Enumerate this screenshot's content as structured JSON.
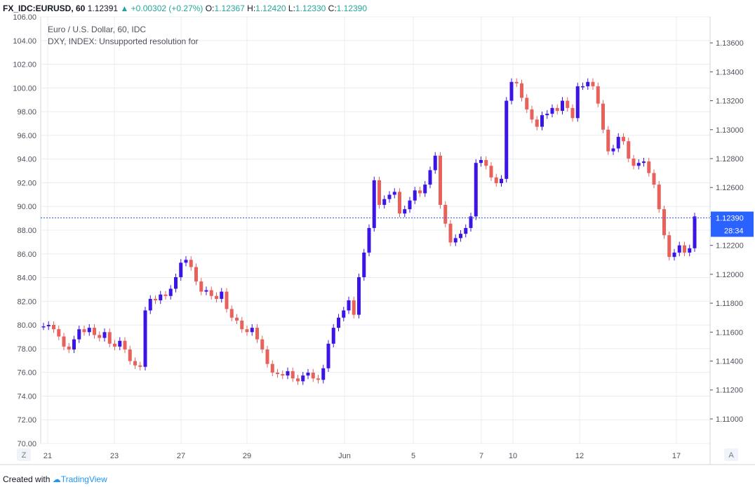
{
  "header": {
    "symbol": "FX_IDC:EURUSD, 60",
    "last": "1.12391",
    "arrow": "▲",
    "change": "+0.00302 (+0.27%)",
    "o_label": "O:",
    "o_value": "1.12367",
    "h_label": "H:",
    "h_value": "1.12420",
    "l_label": "L:",
    "l_value": "1.12330",
    "c_label": "C:",
    "c_value": "1.12390"
  },
  "legend": {
    "line1": "Euro / U.S. Dollar, 60, IDC",
    "line2": "DXY, INDEX: Unsupported resolution for"
  },
  "footer": {
    "created_with": "Created with",
    "brand": "TradingView"
  },
  "buttons": {
    "z": "Z",
    "a": "A"
  },
  "colors": {
    "up": "#3d14e6",
    "down": "#e8615b",
    "price_line": "#2962ff",
    "grid": "#e9ecf1"
  },
  "chart_data": {
    "type": "line",
    "title": "",
    "left_axis": {
      "ticks": [
        "106.00",
        "104.00",
        "102.00",
        "100.00",
        "98.00",
        "96.00",
        "94.00",
        "92.00",
        "90.00",
        "88.00",
        "86.00",
        "84.00",
        "82.00",
        "80.00",
        "78.00",
        "76.00",
        "74.00",
        "72.00",
        "70.00"
      ],
      "range": [
        70,
        106
      ]
    },
    "right_axis": {
      "ticks": [
        "1.13600",
        "1.13400",
        "1.13200",
        "1.13000",
        "1.12800",
        "1.12600",
        "1.12400",
        "1.12200",
        "1.12000",
        "1.11800",
        "1.11600",
        "1.11400",
        "1.11200",
        "1.11000"
      ],
      "range": [
        1.1083,
        1.1378
      ]
    },
    "x_ticks": [
      "21",
      "23",
      "27",
      "29",
      "Jun",
      "5",
      "7",
      "10",
      "12",
      "17"
    ],
    "current_price": "1.12390",
    "countdown": "28:34",
    "series": [
      {
        "values": [
          1.1164,
          1.1165,
          1.1162,
          1.1157,
          1.115,
          1.1148,
          1.1155,
          1.1162,
          1.116,
          1.1163,
          1.1158,
          1.1156,
          1.116,
          1.1152,
          1.115,
          1.1154,
          1.1148,
          1.114,
          1.1137,
          1.1136,
          1.1175,
          1.1183,
          1.1182,
          1.1186,
          1.1185,
          1.119,
          1.1198,
          1.1208,
          1.121,
          1.1205,
          1.1195,
          1.1188,
          1.1189,
          1.1185,
          1.1183,
          1.1188,
          1.1176,
          1.117,
          1.1168,
          1.1162,
          1.116,
          1.1163,
          1.1155,
          1.1148,
          1.1138,
          1.1132,
          1.1131,
          1.113,
          1.1133,
          1.1128,
          1.1126,
          1.113,
          1.1132,
          1.1128,
          1.1127,
          1.1135,
          1.1152,
          1.1163,
          1.117,
          1.1175,
          1.1182,
          1.1172,
          1.1198,
          1.1215,
          1.1232,
          1.1265,
          1.1248,
          1.1252,
          1.1255,
          1.1257,
          1.1242,
          1.1245,
          1.1251,
          1.1258,
          1.1256,
          1.1262,
          1.1272,
          1.1282,
          1.1248,
          1.1235,
          1.1222,
          1.1225,
          1.1228,
          1.1232,
          1.124,
          1.1277,
          1.1279,
          1.1275,
          1.1267,
          1.1263,
          1.1266,
          1.132,
          1.1333,
          1.1332,
          1.1322,
          1.1314,
          1.1307,
          1.1302,
          1.131,
          1.1311,
          1.1315,
          1.1313,
          1.132,
          1.1315,
          1.1308,
          1.133,
          1.133,
          1.1333,
          1.133,
          1.1318,
          1.13,
          1.1285,
          1.1287,
          1.1295,
          1.1292,
          1.128,
          1.1275,
          1.1277,
          1.1278,
          1.127,
          1.1262,
          1.1245,
          1.1227,
          1.1212,
          1.1215,
          1.122,
          1.1215,
          1.1218,
          1.124
        ]
      }
    ]
  }
}
